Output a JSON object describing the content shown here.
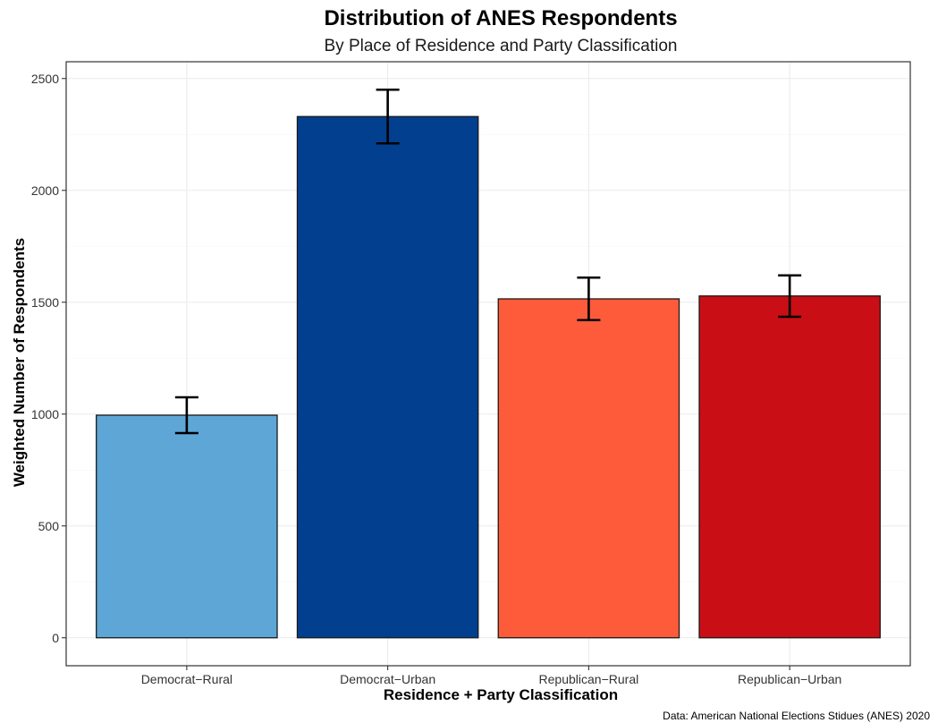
{
  "chart_data": {
    "type": "bar",
    "title": "Distribution of ANES Respondents",
    "subtitle": "By Place of Residence and Party Classification",
    "xlabel": "Residence + Party Classification",
    "ylabel": "Weighted Number of Respondents",
    "caption": "Data: American National Elections Stidues (ANES) 2020",
    "categories": [
      "Democrat−Rural",
      "Democrat−Urban",
      "Republican−Rural",
      "Republican−Urban"
    ],
    "values": [
      995,
      2330,
      1515,
      1528
    ],
    "error_lower": [
      915,
      2210,
      1420,
      1435
    ],
    "error_upper": [
      1075,
      2450,
      1610,
      1620
    ],
    "colors": [
      "#5ea6d6",
      "#023f8f",
      "#fe5b3b",
      "#c90f15"
    ],
    "ylim": [
      -125,
      2575
    ],
    "yticks": [
      0,
      500,
      1000,
      1500,
      2000,
      2500
    ],
    "grid": true,
    "legend": "none"
  }
}
